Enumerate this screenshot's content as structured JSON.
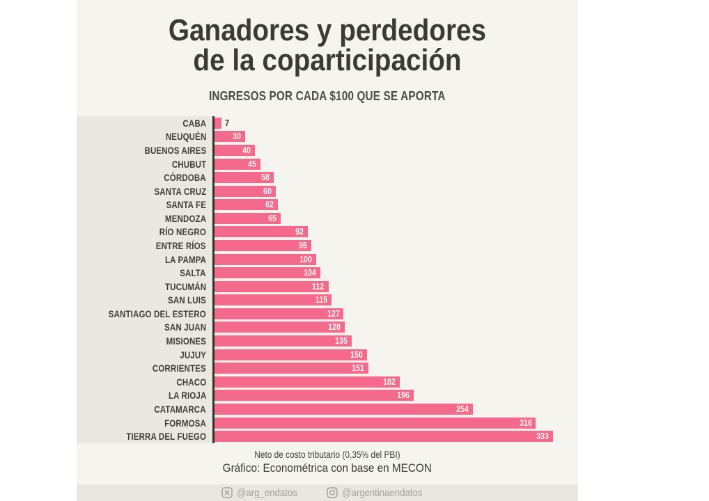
{
  "header": {
    "title_line1": "Ganadores y perdedores",
    "title_line2": "de la coparticipación",
    "subtitle": "INGRESOS POR CADA $100 QUE SE APORTA"
  },
  "chart_data": {
    "type": "bar",
    "orientation": "horizontal",
    "title": "Ganadores y perdedores de la coparticipación",
    "subtitle": "INGRESOS POR CADA $100 QUE SE APORTA",
    "categories": [
      "CABA",
      "NEUQUÉN",
      "BUENOS AIRES",
      "CHUBUT",
      "CÓRDOBA",
      "SANTA CRUZ",
      "SANTA FE",
      "MENDOZA",
      "RÍO NEGRO",
      "ENTRE RÍOS",
      "LA PAMPA",
      "SALTA",
      "TUCUMÁN",
      "SAN LUIS",
      "SANTIAGO DEL ESTERO",
      "SAN JUAN",
      "MISIONES",
      "JUJUY",
      "CORRIENTES",
      "CHACO",
      "LA RIOJA",
      "CATAMARCA",
      "FORMOSA",
      "TIERRA DEL FUEGO"
    ],
    "values": [
      7,
      30,
      40,
      45,
      58,
      60,
      62,
      65,
      92,
      95,
      100,
      104,
      112,
      115,
      127,
      128,
      135,
      150,
      151,
      182,
      196,
      254,
      316,
      333
    ],
    "xlabel": "",
    "ylabel": "",
    "xlim": [
      0,
      358
    ],
    "sorted": "ascending",
    "grid": false,
    "legend": false,
    "bar_color": "#f4698c",
    "value_label_inside_color": "#faf6ef",
    "value_label_outside_color": "#2e2d2a",
    "outside_label_threshold": 15
  },
  "footer": {
    "note": "Neto de costo tributario (0,35% del PBI)",
    "source": "Gráfico: Econométrica con base en MECON",
    "twitter_icon": "x-logo",
    "twitter_handle": "@arg_endatos",
    "instagram_icon": "instagram-camera",
    "instagram_handle": "@argentinaendatos"
  },
  "colors": {
    "page_bg": "#ffffff",
    "card_bg": "#f5f4ef",
    "label_band_bg": "#e9e8e1",
    "axis": "#33322e",
    "bar": "#f4698c",
    "title_text": "#3b3a36",
    "social_bar_bg": "#e9e7e0",
    "social_text": "#a19f99"
  }
}
